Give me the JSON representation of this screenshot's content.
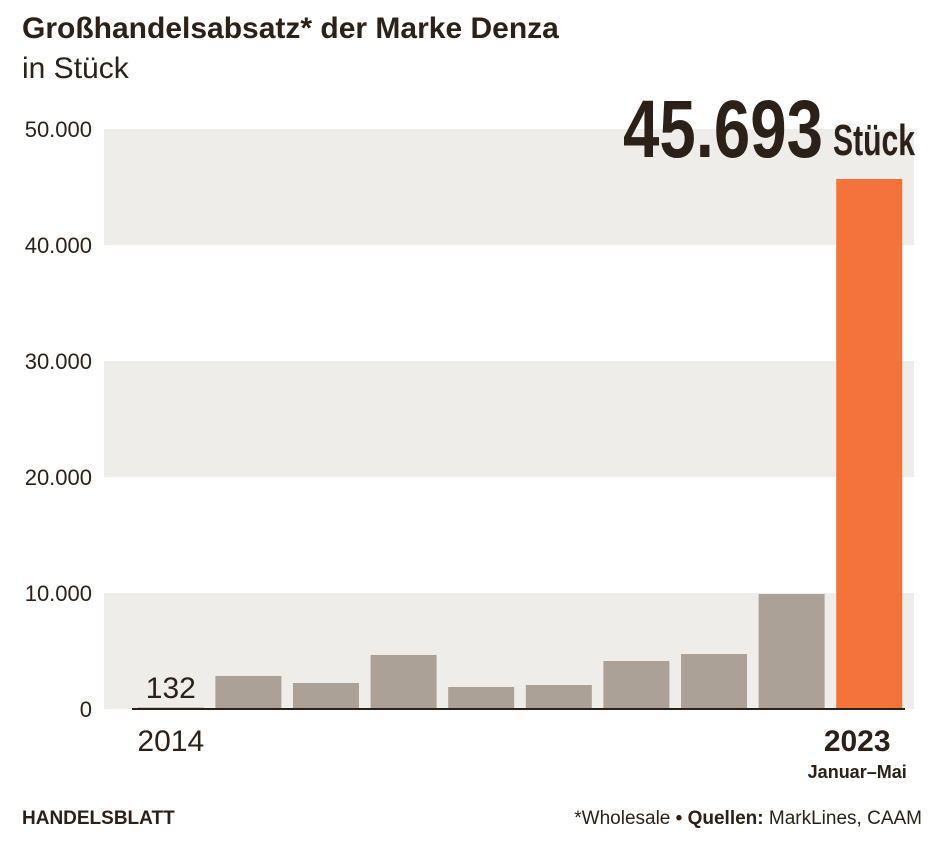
{
  "chart_data": {
    "type": "bar",
    "title": "Großhandelsabsatz* der Marke Denza",
    "subtitle": "in Stück",
    "categories": [
      "2014",
      null,
      null,
      null,
      null,
      null,
      null,
      null,
      null,
      "2023"
    ],
    "category_note": "Januar–Mai",
    "values": [
      132,
      2850,
      2240,
      4660,
      1900,
      2070,
      4140,
      4740,
      9910,
      45693
    ],
    "value_labels": [
      "132",
      null,
      null,
      null,
      null,
      null,
      null,
      null,
      null,
      "45.693"
    ],
    "value_unit": "Stück",
    "colors": [
      "#aba197",
      "#aba197",
      "#aba197",
      "#aba197",
      "#aba197",
      "#aba197",
      "#aba197",
      "#aba197",
      "#aba197",
      "#f4733a"
    ],
    "ylim": [
      0,
      50000
    ],
    "yticks": [
      0,
      {
        "value": 10000,
        "label": "10.000"
      },
      {
        "value": 20000,
        "label": "20.000"
      },
      {
        "value": 30000,
        "label": "30.000"
      },
      {
        "value": 40000,
        "label": "40.000"
      },
      {
        "value": 50000,
        "label": "50.000"
      }
    ],
    "grid": "banded",
    "band_color": "#efedea",
    "brand": "HANDELSBLATT",
    "footnote": "*Wholesale",
    "separator": "•",
    "source_label": "Quellen:",
    "sources": "MarkLines, CAAM"
  }
}
